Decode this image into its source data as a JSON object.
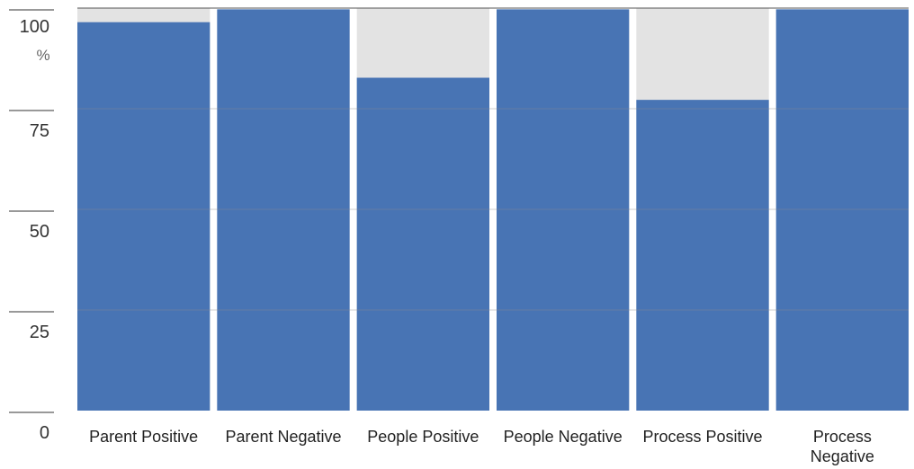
{
  "chart_data": {
    "type": "bar",
    "categories": [
      "Parent Positive",
      "Parent Negative",
      "People Positive",
      "People Negative",
      "Process Positive",
      "Process Negative"
    ],
    "category_lines": [
      [
        "Parent Positive"
      ],
      [
        "Parent Negative"
      ],
      [
        "People Positive"
      ],
      [
        "People Negative"
      ],
      [
        "Process Positive"
      ],
      [
        "Process",
        "Negative"
      ]
    ],
    "values": [
      96.5,
      99.7,
      82.7,
      99.7,
      77.2,
      99.7
    ],
    "ylim": [
      0,
      100
    ],
    "yticks": [
      0,
      25,
      50,
      75,
      100
    ],
    "ylabel": "%",
    "grid": true,
    "background_bands": [
      true,
      false,
      true,
      false,
      true,
      false
    ],
    "colors": {
      "bar": "#4874b4",
      "band": "#e3e3e3",
      "grid": "#8a8a8a",
      "tick_line": "#333333"
    }
  }
}
